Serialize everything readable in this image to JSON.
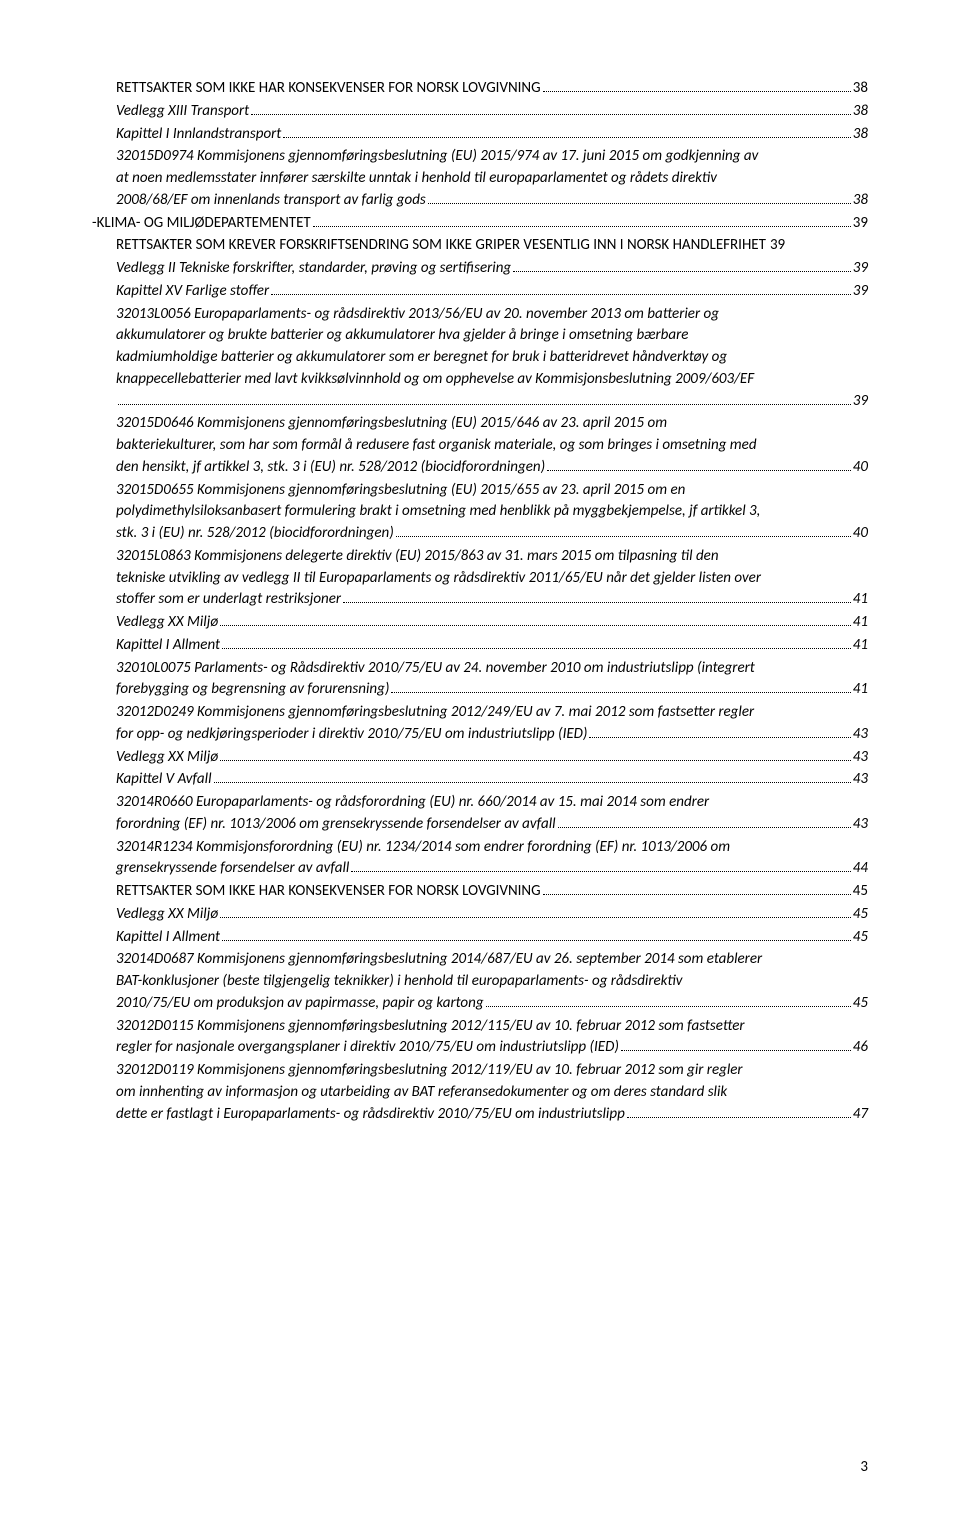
{
  "page_number": "3",
  "entries": [
    {
      "style": "normal",
      "indent": 2,
      "lines": [
        "RETTSAKTER SOM IKKE HAR KONSEKVENSER FOR NORSK LOVGIVNING"
      ],
      "page": "38"
    },
    {
      "style": "italic",
      "indent": 2,
      "lines": [
        "Vedlegg XIII Transport"
      ],
      "page": "38"
    },
    {
      "style": "italic",
      "indent": 2,
      "lines": [
        "Kapittel I Innlandstransport"
      ],
      "page": "38"
    },
    {
      "style": "italic",
      "indent": 2,
      "lines": [
        "32015D0974 Kommisjonens gjennomføringsbeslutning (EU) 2015/974 av 17. juni 2015 om godkjenning av",
        "at noen medlemsstater innfører særskilte unntak i henhold til europaparlamentet og rådets direktiv",
        "2008/68/EF om innenlands transport av farlig gods"
      ],
      "page": "38"
    },
    {
      "style": "normal",
      "indent": 0,
      "lines": [
        "-KLIMA- OG MILJØDEPARTEMENTET"
      ],
      "page": "39"
    },
    {
      "style": "normal",
      "indent": 1,
      "lines": [
        "RETTSAKTER SOM KREVER FORSKRIFTSENDRING SOM IKKE GRIPER VESENTLIG INN I NORSK HANDLEFRIHET"
      ],
      "page": "39",
      "nodots": true
    },
    {
      "style": "italic",
      "indent": 2,
      "lines": [
        "Vedlegg II Tekniske forskrifter, standarder, prøving og sertifisering"
      ],
      "page": "39"
    },
    {
      "style": "italic",
      "indent": 2,
      "lines": [
        "Kapittel XV Farlige stoffer"
      ],
      "page": "39"
    },
    {
      "style": "italic",
      "indent": 2,
      "lines": [
        "32013L0056 Europaparlaments- og rådsdirektiv 2013/56/EU av 20. november 2013 om batterier og",
        "akkumulatorer og brukte batterier og akkumulatorer hva gjelder å bringe i omsetning bærbare",
        "kadmiumholdige batterier og akkumulatorer som er beregnet for bruk i batteridrevet håndverktøy og",
        "knappecellebatterier med lavt kvikksølvinnhold og om opphevelse av Kommisjonsbeslutning 2009/603/EF",
        ""
      ],
      "page": "39"
    },
    {
      "style": "italic",
      "indent": 2,
      "lines": [
        "32015D0646 Kommisjonens gjennomføringsbeslutning (EU) 2015/646 av 23. april 2015 om",
        "bakteriekulturer, som har som formål å redusere fast organisk materiale, og som bringes i omsetning med",
        "den hensikt, jf artikkel 3, stk. 3 i (EU) nr. 528/2012 (biocidforordningen)"
      ],
      "page": "40"
    },
    {
      "style": "italic",
      "indent": 2,
      "lines": [
        "32015D0655 Kommisjonens gjennomføringsbeslutning (EU) 2015/655 av 23. april 2015 om en",
        "polydimethylsiloksanbasert formulering brakt i omsetning med henblikk på myggbekjempelse, jf artikkel 3,",
        "stk. 3 i (EU) nr. 528/2012 (biocidforordningen)"
      ],
      "page": "40"
    },
    {
      "style": "italic",
      "indent": 2,
      "lines": [
        "32015L0863 Kommisjonens delegerte direktiv (EU) 2015/863 av 31. mars 2015 om tilpasning til den",
        "tekniske utvikling av vedlegg II til Europaparlaments og rådsdirektiv 2011/65/EU når det gjelder listen over",
        "stoffer som er underlagt restriksjoner"
      ],
      "page": "41"
    },
    {
      "style": "italic",
      "indent": 2,
      "lines": [
        "Vedlegg XX Miljø"
      ],
      "page": "41"
    },
    {
      "style": "italic",
      "indent": 2,
      "lines": [
        "Kapittel I Allment"
      ],
      "page": "41"
    },
    {
      "style": "italic",
      "indent": 2,
      "lines": [
        "32010L0075 Parlaments- og Rådsdirektiv 2010/75/EU av 24. november 2010 om industriutslipp (integrert",
        "forebygging og begrensning av forurensning)"
      ],
      "page": "41"
    },
    {
      "style": "italic",
      "indent": 2,
      "lines": [
        "32012D0249 Kommisjonens gjennomføringsbeslutning 2012/249/EU av 7. mai 2012 som fastsetter regler",
        "for opp- og nedkjøringsperioder i direktiv 2010/75/EU om industriutslipp (IED)"
      ],
      "page": "43"
    },
    {
      "style": "italic",
      "indent": 2,
      "lines": [
        "Vedlegg XX Miljø"
      ],
      "page": "43"
    },
    {
      "style": "italic",
      "indent": 2,
      "lines": [
        "Kapittel V Avfall"
      ],
      "page": "43"
    },
    {
      "style": "italic",
      "indent": 2,
      "lines": [
        "32014R0660 Europaparlaments- og rådsforordning (EU) nr. 660/2014 av 15. mai 2014 som endrer",
        "forordning (EF) nr. 1013/2006 om grensekryssende forsendelser av avfall"
      ],
      "page": "43"
    },
    {
      "style": "italic",
      "indent": 2,
      "lines": [
        "32014R1234 Kommisjonsforordning (EU) nr. 1234/2014 som endrer forordning (EF) nr. 1013/2006 om",
        "grensekryssende forsendelser av avfall"
      ],
      "page": "44"
    },
    {
      "style": "normal",
      "indent": 1,
      "lines": [
        "RETTSAKTER SOM IKKE HAR KONSEKVENSER FOR NORSK LOVGIVNING"
      ],
      "page": "45"
    },
    {
      "style": "italic",
      "indent": 2,
      "lines": [
        "Vedlegg XX Miljø"
      ],
      "page": "45"
    },
    {
      "style": "italic",
      "indent": 2,
      "lines": [
        "Kapittel I Allment"
      ],
      "page": "45"
    },
    {
      "style": "italic",
      "indent": 2,
      "lines": [
        "32014D0687 Kommisjonens gjennomføringsbeslutning 2014/687/EU av 26. september 2014 som etablerer",
        "BAT-konklusjoner (beste tilgjengelig teknikker) i henhold til europaparlaments- og rådsdirektiv",
        "2010/75/EU om produksjon av papirmasse, papir og kartong"
      ],
      "page": "45"
    },
    {
      "style": "italic",
      "indent": 2,
      "lines": [
        "32012D0115 Kommisjonens gjennomføringsbeslutning 2012/115/EU av 10. februar 2012 som fastsetter",
        "regler for nasjonale overgangsplaner i direktiv 2010/75/EU om industriutslipp (IED)"
      ],
      "page": "46"
    },
    {
      "style": "italic",
      "indent": 2,
      "lines": [
        "32012D0119 Kommisjonens gjennomføringsbeslutning 2012/119/EU av 10. februar 2012 som gir regler",
        "om innhenting av informasjon og utarbeiding av BAT referansedokumenter og om deres standard slik",
        "dette er fastlagt i Europaparlaments- og rådsdirektiv 2010/75/EU om industriutslipp"
      ],
      "page": "47"
    }
  ]
}
